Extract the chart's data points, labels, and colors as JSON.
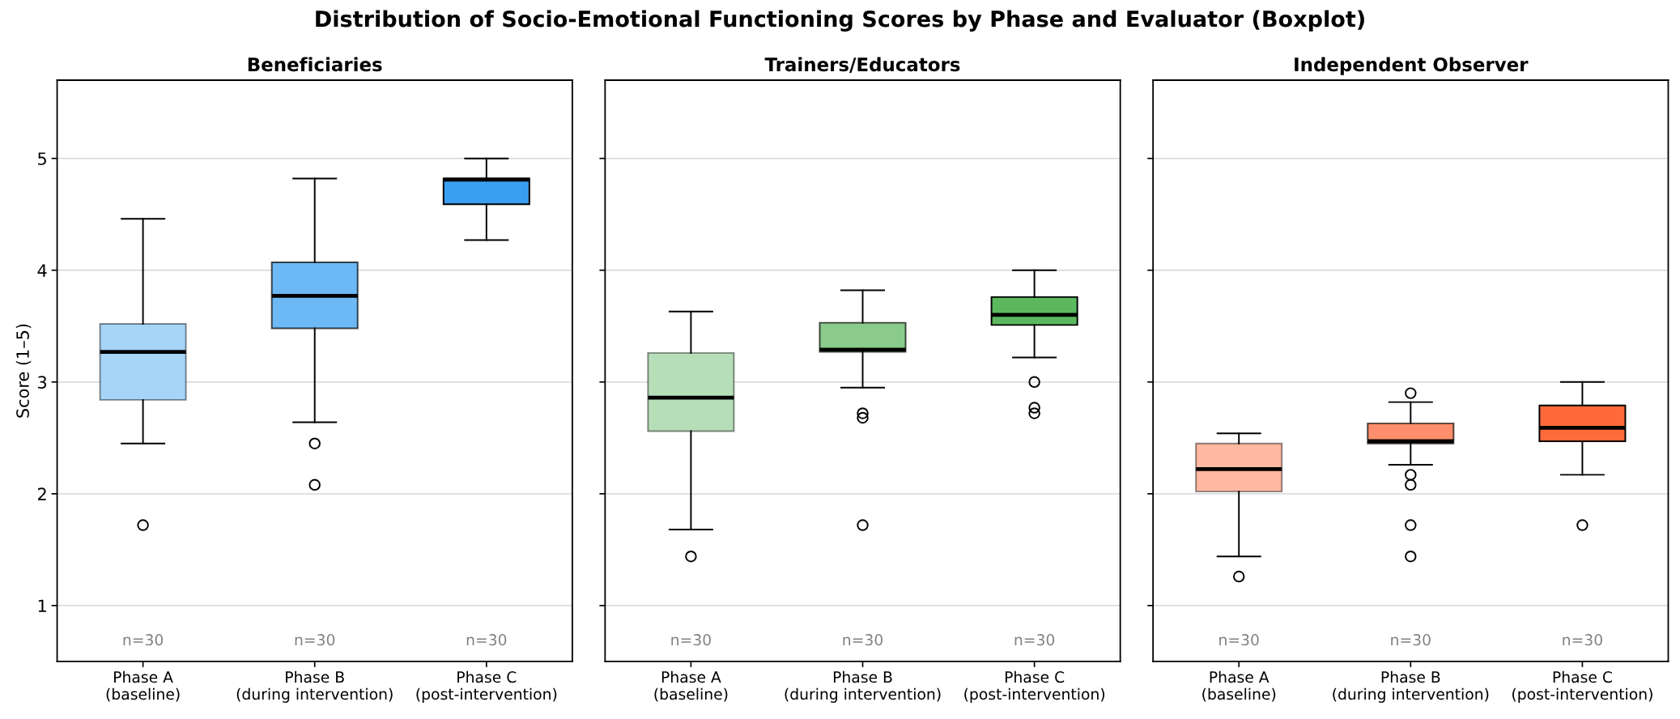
{
  "chart_data": [
    {
      "type": "box",
      "title": "Beneficiaries",
      "ylabel": "Score (1–5)",
      "categories": [
        "Phase A\n(baseline)",
        "Phase B\n(during intervention)",
        "Phase C\n(post-intervention)"
      ],
      "colors": [
        "#a6d5f8",
        "#6cb9f5",
        "#3a9ff0"
      ],
      "boxes": [
        {
          "low": 2.45,
          "q1": 2.84,
          "median": 3.27,
          "q3": 3.52,
          "high": 4.46,
          "outliers": [
            1.72
          ]
        },
        {
          "low": 2.64,
          "q1": 3.48,
          "median": 3.77,
          "q3": 4.07,
          "high": 4.82,
          "outliers": [
            2.45,
            2.08
          ]
        },
        {
          "low": 4.27,
          "q1": 4.59,
          "median": 4.81,
          "q3": 4.82,
          "high": 5.0
        }
      ],
      "ylim": [
        0.5,
        5.7
      ],
      "yticks": [
        1,
        2,
        3,
        4,
        5
      ],
      "grid": "y",
      "annotations": [
        "Distribution of Socio-Emotional Functioning Scores by Phase and Evaluator (Boxplot)",
        "n=30",
        "n=30",
        "n=30"
      ]
    },
    {
      "type": "box",
      "title": "Trainers/Educators",
      "categories": [
        "Phase A\n(baseline)",
        "Phase B\n(during intervention)",
        "Phase C\n(post-intervention)"
      ],
      "colors": [
        "#b6dfb9",
        "#8acb8c",
        "#5cb85f"
      ],
      "boxes": [
        {
          "low": 1.68,
          "q1": 2.56,
          "median": 2.86,
          "q3": 3.26,
          "high": 3.63,
          "outliers": [
            1.44
          ]
        },
        {
          "low": 2.95,
          "q1": 3.27,
          "median": 3.29,
          "q3": 3.53,
          "high": 3.82,
          "outliers": [
            2.72,
            2.68,
            1.72
          ]
        },
        {
          "low": 3.22,
          "q1": 3.51,
          "median": 3.6,
          "q3": 3.76,
          "high": 4.0,
          "outliers": [
            3.0,
            2.77,
            2.72
          ]
        }
      ],
      "ylim": [
        0.5,
        5.7
      ],
      "yticks": [
        1,
        2,
        3,
        4,
        5
      ],
      "grid": "y",
      "tick_labels": "x",
      "annotations": [
        "n=30",
        "n=30",
        "n=30"
      ]
    },
    {
      "type": "box",
      "title": "Independent Observer",
      "categories": [
        "Phase A\n(baseline)",
        "Phase B\n(during intervention)",
        "Phase C\n(post-intervention)"
      ],
      "colors": [
        "#ffb8a2",
        "#ff8f6c",
        "#ff6a3b"
      ],
      "boxes": [
        {
          "low": 1.44,
          "q1": 2.02,
          "median": 2.22,
          "q3": 2.45,
          "high": 2.54,
          "outliers": [
            1.26
          ]
        },
        {
          "low": 2.26,
          "q1": 2.45,
          "median": 2.47,
          "q3": 2.63,
          "high": 2.82,
          "outliers": [
            2.9,
            2.17,
            2.08,
            1.72,
            1.44
          ]
        },
        {
          "low": 2.17,
          "q1": 2.47,
          "median": 2.59,
          "q3": 2.79,
          "high": 3.0,
          "outliers": [
            1.72
          ]
        }
      ],
      "ylim": [
        0.5,
        5.7
      ],
      "yticks": [
        1,
        2,
        3,
        4,
        5
      ],
      "grid": "y",
      "tick_labels": "x",
      "annotations": [
        "n=30",
        "n=30",
        "n=30"
      ]
    }
  ]
}
